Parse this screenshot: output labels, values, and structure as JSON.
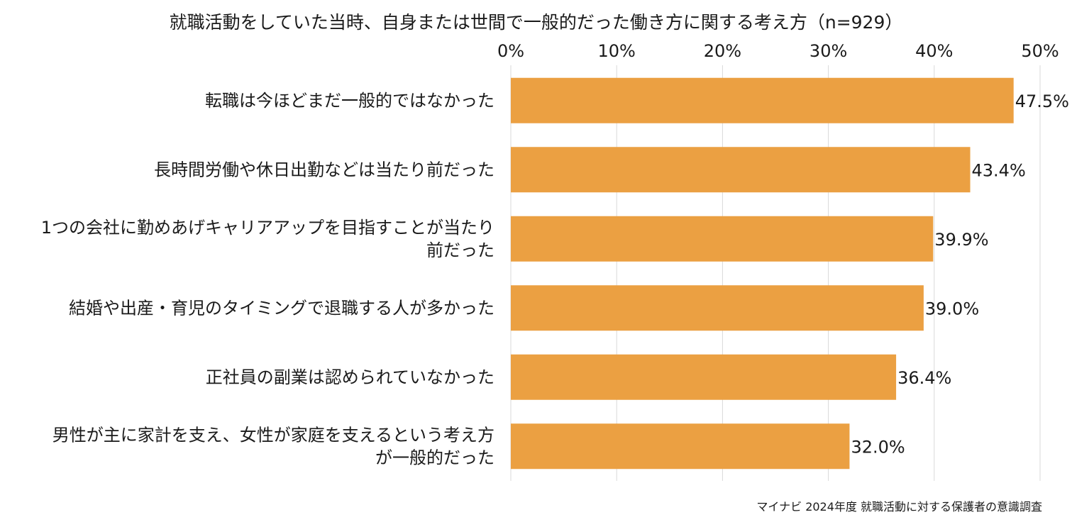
{
  "chart_data": {
    "type": "bar",
    "orientation": "horizontal",
    "title": "就職活動をしていた当時、自身または世間で一般的だった働き方に関する考え方（n=929）",
    "categories": [
      [
        "転職は今ほどまだ一般的ではなかった"
      ],
      [
        "長時間労働や休日出勤などは当たり前だった"
      ],
      [
        "1つの会社に勤めあげキャリアアップを目指すことが当たり",
        "前だった"
      ],
      [
        "結婚や出産・育児のタイミングで退職する人が多かった"
      ],
      [
        "正社員の副業は認められていなかった"
      ],
      [
        "男性が主に家計を支え、女性が家庭を支えるという考え方",
        "が一般的だった"
      ]
    ],
    "values": [
      47.5,
      43.4,
      39.9,
      39.0,
      36.4,
      32.0
    ],
    "value_labels": [
      "47.5%",
      "43.4%",
      "39.9%",
      "39.0%",
      "36.4%",
      "32.0%"
    ],
    "xlim": [
      0,
      50
    ],
    "xticks": [
      0,
      10,
      20,
      30,
      40,
      50
    ],
    "xtick_labels": [
      "0%",
      "10%",
      "20%",
      "30%",
      "40%",
      "50%"
    ],
    "xaxis_position": "top",
    "grid": true,
    "bar_color": "#EBA042",
    "grid_color": "#d9d9d9",
    "source": "マイナビ 2024年度 就職活動に対する保護者の意識調査"
  }
}
